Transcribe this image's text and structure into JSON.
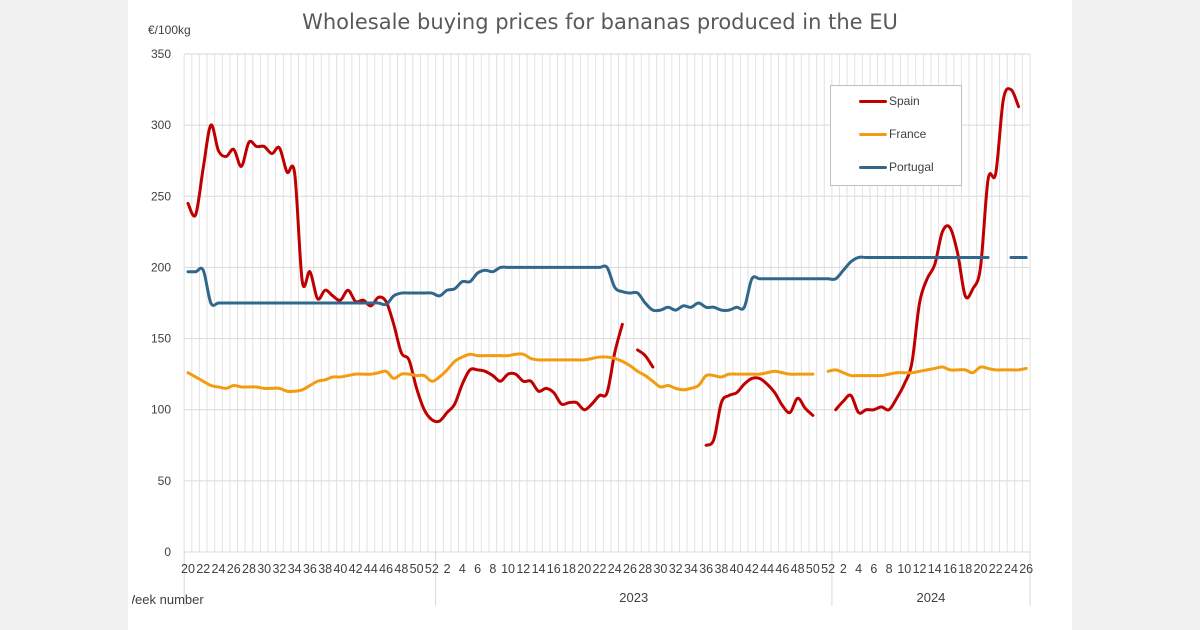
{
  "chart_data": {
    "type": "line",
    "title": "Wholesale buying prices for bananas produced in the EU",
    "ylabel": "€/100kg",
    "xlabel": "Week number",
    "ylim": [
      0,
      350
    ],
    "yticks": [
      0,
      50,
      100,
      150,
      200,
      250,
      300,
      350
    ],
    "grid": true,
    "legend_position": "top-right",
    "years": [
      {
        "label": "",
        "first_week": 20,
        "last_week": 52
      },
      {
        "label": "2023",
        "first_week": 1,
        "last_week": 52
      },
      {
        "label": "2024",
        "first_week": 1,
        "last_week": 26
      }
    ],
    "x_tick_labels_note": "every 2nd week",
    "series": [
      {
        "name": "Spain",
        "color": "#c00000",
        "values": [
          245,
          237,
          270,
          300,
          282,
          278,
          283,
          271,
          288,
          285,
          285,
          280,
          284,
          267,
          266,
          190,
          197,
          178,
          184,
          180,
          177,
          184,
          176,
          177,
          173,
          179,
          176,
          160,
          140,
          135,
          115,
          100,
          93,
          92,
          98,
          104,
          118,
          128,
          128,
          127,
          124,
          120,
          125,
          125,
          120,
          120,
          113,
          115,
          112,
          104,
          105,
          105,
          100,
          104,
          110,
          112,
          140,
          160,
          null,
          142,
          138,
          130,
          null,
          null,
          null,
          null,
          null,
          null,
          75,
          79,
          105,
          110,
          112,
          118,
          122,
          122,
          118,
          112,
          103,
          98,
          108,
          101,
          96,
          null,
          null,
          100,
          106,
          110,
          98,
          100,
          100,
          102,
          100,
          108,
          118,
          133,
          175,
          192,
          202,
          225,
          228,
          210,
          180,
          185,
          200,
          262,
          266,
          318,
          325,
          313,
          null
        ]
      },
      {
        "name": "France",
        "color": "#f39c12",
        "values": [
          126,
          123,
          120,
          117,
          116,
          115,
          117,
          116,
          116,
          116,
          115,
          115,
          115,
          113,
          113,
          114,
          117,
          120,
          121,
          123,
          123,
          124,
          125,
          125,
          125,
          126,
          127,
          122,
          125,
          125,
          124,
          124,
          120,
          123,
          128,
          134,
          137,
          139,
          138,
          138,
          138,
          138,
          138,
          139,
          139,
          136,
          135,
          135,
          135,
          135,
          135,
          135,
          135,
          136,
          137,
          137,
          136,
          134,
          131,
          127,
          124,
          120,
          116,
          117,
          115,
          114,
          115,
          117,
          124,
          124,
          123,
          125,
          125,
          125,
          125,
          125,
          126,
          127,
          126,
          125,
          125,
          125,
          125,
          null,
          127,
          128,
          126,
          124,
          124,
          124,
          124,
          124,
          125,
          126,
          126,
          126,
          127,
          128,
          129,
          130,
          128,
          128,
          128,
          126,
          130,
          129,
          128,
          128,
          128,
          128,
          129
        ]
      },
      {
        "name": "Portugal",
        "color": "#31678a",
        "values": [
          197,
          197,
          198,
          175,
          175,
          175,
          175,
          175,
          175,
          175,
          175,
          175,
          175,
          175,
          175,
          175,
          175,
          175,
          175,
          175,
          175,
          175,
          175,
          175,
          175,
          175,
          174,
          180,
          182,
          182,
          182,
          182,
          182,
          180,
          184,
          185,
          190,
          190,
          196,
          198,
          197,
          200,
          200,
          200,
          200,
          200,
          200,
          200,
          200,
          200,
          200,
          200,
          200,
          200,
          200,
          200,
          186,
          183,
          182,
          182,
          175,
          170,
          170,
          172,
          170,
          173,
          172,
          175,
          172,
          172,
          170,
          170,
          172,
          172,
          192,
          192,
          192,
          192,
          192,
          192,
          192,
          192,
          192,
          192,
          192,
          192,
          198,
          204,
          207,
          207,
          207,
          207,
          207,
          207,
          207,
          207,
          207,
          207,
          207,
          207,
          207,
          207,
          207,
          207,
          207,
          207,
          null,
          null,
          207,
          207,
          207
        ]
      }
    ]
  }
}
